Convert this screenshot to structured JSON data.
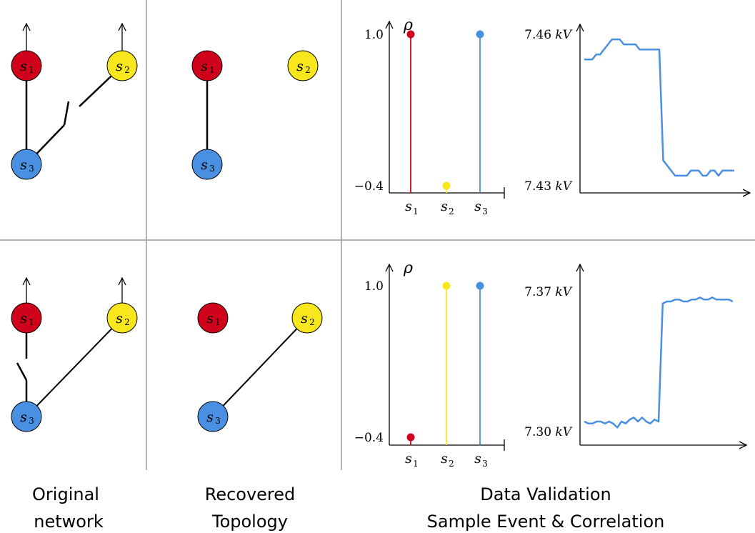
{
  "colors": {
    "s1": "#d0021b",
    "s2": "#f8e71c",
    "s3": "#4a90e2",
    "line": "#000000",
    "divider": "#9b9b9b",
    "trace": "#4a90e2"
  },
  "nodes": {
    "s1": {
      "base": "s",
      "sub": "1"
    },
    "s2": {
      "base": "s",
      "sub": "2"
    },
    "s3": {
      "base": "s",
      "sub": "3"
    }
  },
  "captions": {
    "original_line1": "Original",
    "original_line2": "network",
    "recovered_line1": "Recovered",
    "recovered_line2": "Topology",
    "validation_line1": "Data Validation",
    "validation_line2": "Sample Event & Correlation"
  },
  "chart_data": [
    {
      "type": "bar",
      "panel": "top-correlation",
      "ylabel": "ρ",
      "categories": [
        "s1",
        "s2",
        "s3"
      ],
      "values": [
        1.0,
        -0.4,
        1.0
      ],
      "ylim": [
        -0.4,
        1.0
      ],
      "ytick_labels": [
        "1.0",
        "−0.4"
      ],
      "colors": [
        "#d0021b",
        "#f8e71c",
        "#4a90e2"
      ]
    },
    {
      "type": "line",
      "panel": "top-event",
      "unit": "kV",
      "ytick_labels": [
        "7.46",
        "7.43"
      ],
      "ylim": [
        7.43,
        7.46
      ],
      "values": [
        7.455,
        7.455,
        7.455,
        7.456,
        7.456,
        7.457,
        7.458,
        7.459,
        7.459,
        7.459,
        7.458,
        7.458,
        7.458,
        7.458,
        7.457,
        7.457,
        7.457,
        7.457,
        7.457,
        7.457,
        7.435,
        7.434,
        7.433,
        7.432,
        7.432,
        7.432,
        7.432,
        7.433,
        7.433,
        7.433,
        7.432,
        7.432,
        7.433,
        7.433,
        7.432,
        7.433,
        7.433,
        7.433,
        7.433
      ]
    },
    {
      "type": "bar",
      "panel": "bottom-correlation",
      "ylabel": "ρ",
      "categories": [
        "s1",
        "s2",
        "s3"
      ],
      "values": [
        -0.4,
        1.0,
        1.0
      ],
      "ylim": [
        -0.4,
        1.0
      ],
      "ytick_labels": [
        "1.0",
        "−0.4"
      ],
      "colors": [
        "#d0021b",
        "#f8e71c",
        "#4a90e2"
      ]
    },
    {
      "type": "line",
      "panel": "bottom-event",
      "unit": "kV",
      "ytick_labels": [
        "7.37",
        "7.30"
      ],
      "ylim": [
        7.3,
        7.37
      ],
      "values": [
        7.305,
        7.304,
        7.304,
        7.305,
        7.305,
        7.304,
        7.305,
        7.304,
        7.302,
        7.305,
        7.304,
        7.306,
        7.307,
        7.305,
        7.307,
        7.305,
        7.304,
        7.306,
        7.305,
        7.364,
        7.365,
        7.365,
        7.366,
        7.366,
        7.365,
        7.365,
        7.366,
        7.366,
        7.367,
        7.366,
        7.366,
        7.367,
        7.366,
        7.366,
        7.366,
        7.366,
        7.365
      ]
    }
  ]
}
